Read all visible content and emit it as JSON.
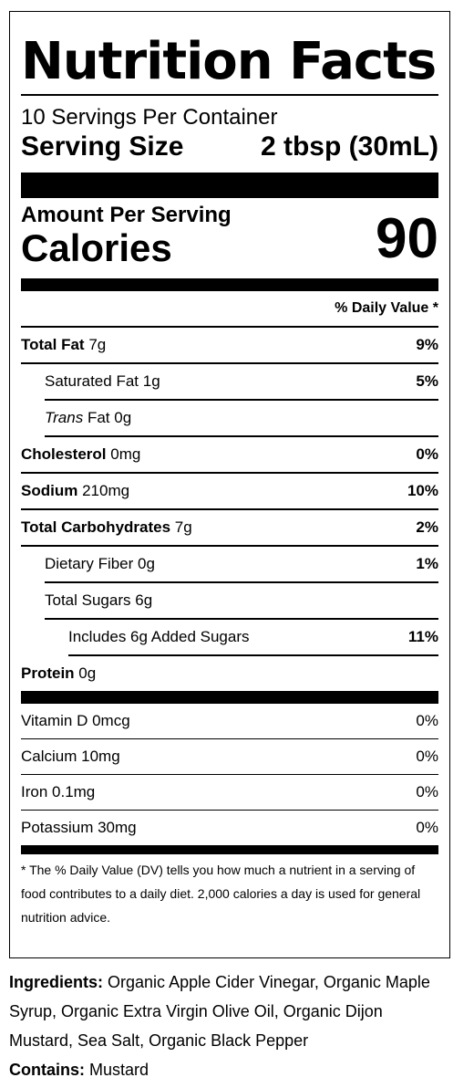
{
  "title": "Nutrition Facts",
  "servings_per_container": "10 Servings Per Container",
  "serving_size_label": "Serving Size",
  "serving_size_value": "2 tbsp (30mL)",
  "amount_per_serving": "Amount Per Serving",
  "calories_label": "Calories",
  "calories_value": "90",
  "daily_value_header": "% Daily Value *",
  "nutrients": [
    {
      "name": "Total Fat",
      "amount": "7g",
      "dv": "9%"
    },
    {
      "name": "Saturated Fat",
      "amount": "1g",
      "dv": "5%"
    },
    {
      "name": "Trans",
      "name_suffix": "Fat",
      "amount": "0g",
      "dv": ""
    },
    {
      "name": "Cholesterol",
      "amount": "0mg",
      "dv": "0%"
    },
    {
      "name": "Sodium",
      "amount": "210mg",
      "dv": "10%"
    },
    {
      "name": "Total Carbohydrates",
      "amount": "7g",
      "dv": "2%"
    },
    {
      "name": "Dietary Fiber",
      "amount": "0g",
      "dv": "1%"
    },
    {
      "name": "Total Sugars",
      "amount": "6g",
      "dv": ""
    },
    {
      "name": "Includes 6g Added Sugars",
      "amount": "",
      "dv": "11%"
    },
    {
      "name": "Protein",
      "amount": "0g",
      "dv": ""
    }
  ],
  "vitamins": [
    {
      "name": "Vitamin D 0mcg",
      "dv": "0%"
    },
    {
      "name": "Calcium 10mg",
      "dv": "0%"
    },
    {
      "name": "Iron 0.1mg",
      "dv": "0%"
    },
    {
      "name": "Potassium 30mg",
      "dv": "0%"
    }
  ],
  "footnote": "* The % Daily Value (DV) tells you how much a nutrient in a serving of food contributes to a daily diet. 2,000 calories a day is used for general nutrition advice.",
  "ingredients_label": "Ingredients:",
  "ingredients_text": "Organic Apple Cider Vinegar, Organic Maple Syrup, Organic Extra Virgin Olive Oil, Organic Dijon Mustard, Sea Salt, Organic Black Pepper",
  "contains_label": "Contains:",
  "contains_text": "Mustard"
}
